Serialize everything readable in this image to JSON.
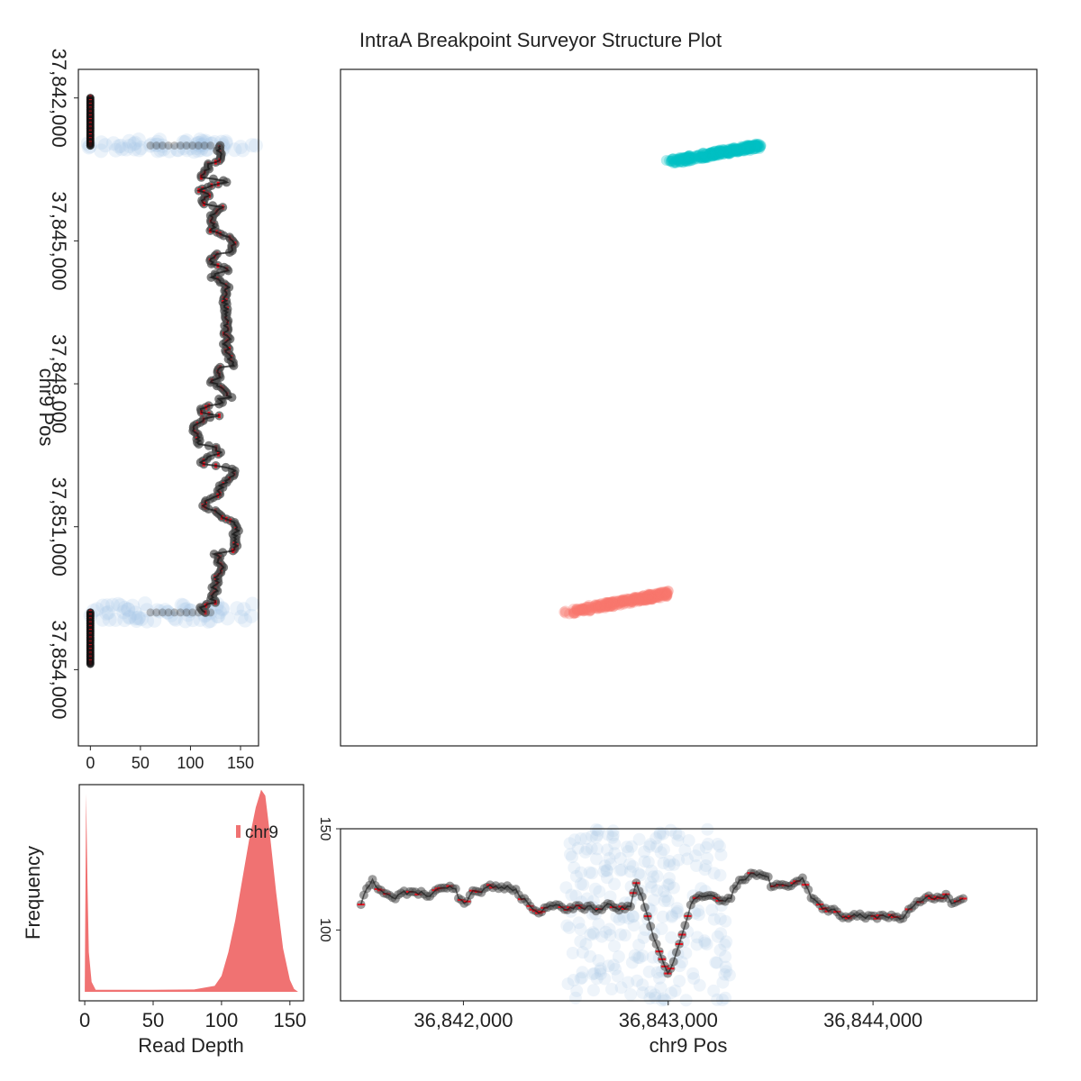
{
  "title": "IntraA Breakpoint Surveyor Structure Plot",
  "colors": {
    "pos": "#f8766d",
    "neg": "#00bfc4",
    "bg_scatter": "#a8c8e6",
    "depth_point": "#4a4a4a",
    "median_mark": "#e8101e",
    "density_fill": "#f07272"
  },
  "chart_data": [
    {
      "id": "left_depth",
      "type": "scatter",
      "xlabel": "",
      "ylabel": "chr9 Pos",
      "xlim": [
        -12,
        168
      ],
      "ylim": [
        37841400,
        37855600
      ],
      "xticks": [
        0,
        50,
        100,
        150
      ],
      "xtick_labels": [
        "0",
        "50",
        "100",
        "150"
      ],
      "yticks": [
        37842000,
        37845000,
        37848000,
        37851000,
        37854000
      ],
      "ytick_labels": [
        "37,842,000",
        "37,845,000",
        "37,848,000",
        "37,851,000",
        "37,854,000"
      ],
      "zero_ranges": [
        [
          37842000,
          37843000
        ],
        [
          37852800,
          37853900
        ]
      ],
      "sv_range": [
        37843000,
        37852800
      ],
      "depth_range": [
        105,
        150
      ]
    },
    {
      "id": "main_structure",
      "type": "scatter",
      "xlabel": "",
      "ylabel": "",
      "xlim": [
        36841400,
        36844800
      ],
      "ylim": [
        37841400,
        37855600
      ],
      "series": [
        {
          "color": "neg",
          "x_range": [
            36843000,
            36843450
          ],
          "y_range": [
            37843350,
            37843000
          ]
        },
        {
          "color": "pos",
          "x_range": [
            36842500,
            36843000
          ],
          "y_range": [
            37852800,
            37852400
          ]
        }
      ]
    },
    {
      "id": "histogram",
      "type": "area",
      "xlabel": "Read Depth",
      "ylabel": "Frequency",
      "xlim": [
        -4,
        160
      ],
      "xticks": [
        0,
        50,
        100,
        150
      ],
      "xtick_labels": [
        "0",
        "50",
        "100",
        "150"
      ],
      "legend": {
        "label": "chr9",
        "position": "top-right"
      },
      "density": [
        [
          0,
          0.02
        ],
        [
          1,
          1.0
        ],
        [
          2,
          0.55
        ],
        [
          3,
          0.2
        ],
        [
          5,
          0.05
        ],
        [
          8,
          0.01
        ],
        [
          20,
          0.01
        ],
        [
          50,
          0.01
        ],
        [
          80,
          0.012
        ],
        [
          95,
          0.03
        ],
        [
          100,
          0.08
        ],
        [
          105,
          0.2
        ],
        [
          110,
          0.36
        ],
        [
          115,
          0.56
        ],
        [
          120,
          0.76
        ],
        [
          125,
          0.93
        ],
        [
          129,
          1.02
        ],
        [
          132,
          0.99
        ],
        [
          135,
          0.82
        ],
        [
          140,
          0.5
        ],
        [
          145,
          0.22
        ],
        [
          150,
          0.06
        ],
        [
          153,
          0.015
        ],
        [
          156,
          0.0
        ]
      ]
    },
    {
      "id": "bottom_depth",
      "type": "line",
      "xlabel": "chr9 Pos",
      "ylabel": "",
      "xlim": [
        36841400,
        36844800
      ],
      "ylim": [
        65,
        150
      ],
      "xticks": [
        36842000,
        36843000,
        36844000
      ],
      "xtick_labels": [
        "36,842,000",
        "36,843,000",
        "36,844,000"
      ],
      "yticks": [
        100,
        150
      ],
      "ytick_labels": [
        "100",
        "150"
      ],
      "line_x_range": [
        36841500,
        36844450
      ],
      "bg_x_range": [
        36842500,
        36843300
      ],
      "dip": {
        "x": 36843000,
        "value": 78
      },
      "depth_range": [
        105,
        142
      ]
    }
  ]
}
